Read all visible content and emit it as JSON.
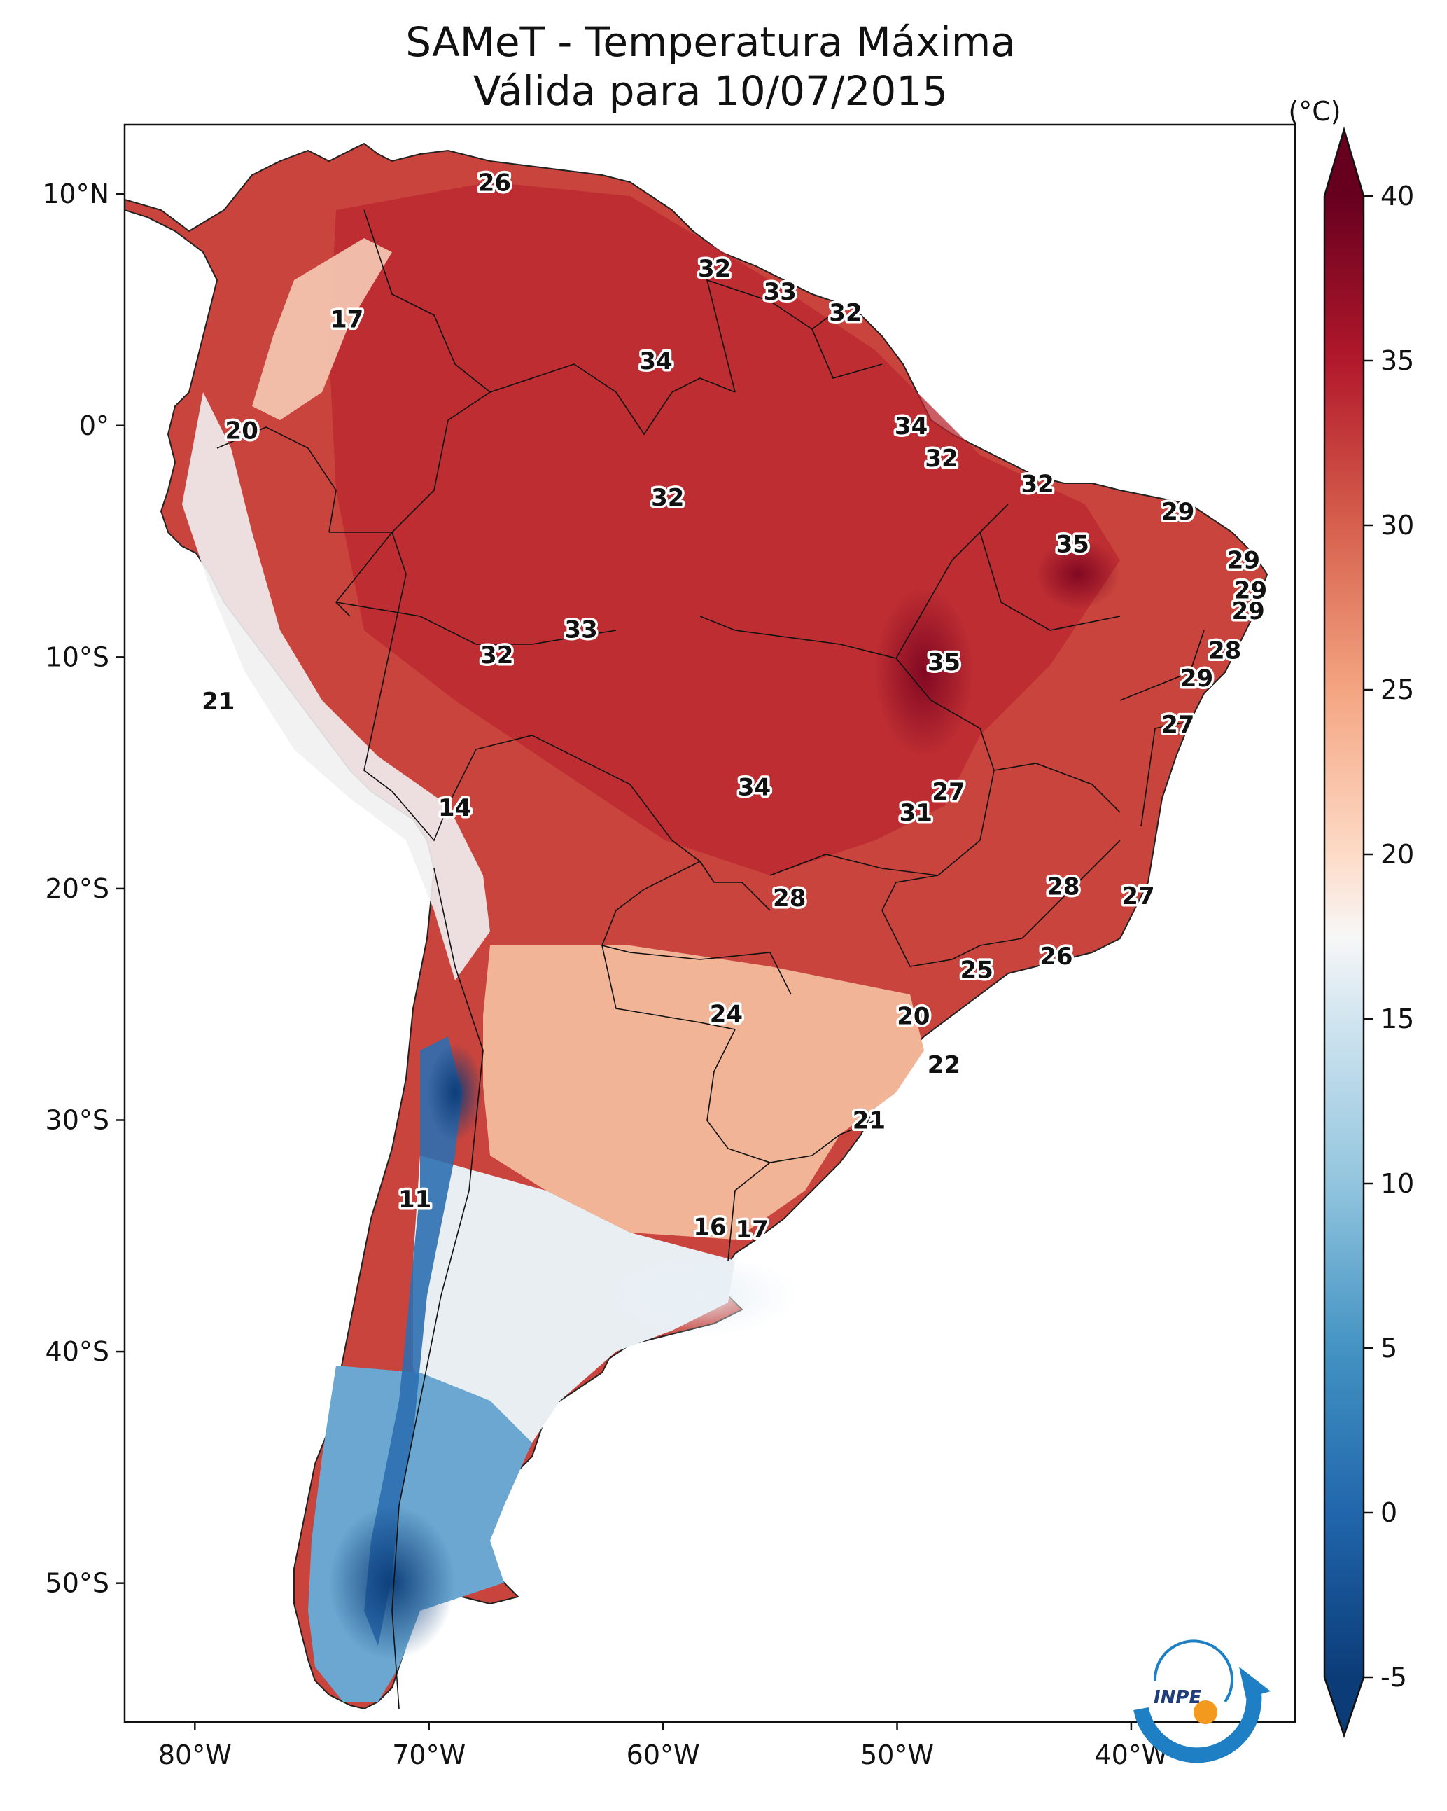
{
  "title": {
    "line1": "SAMeT - Temperatura Máxima",
    "line2": "Válida para 10/07/2015"
  },
  "map": {
    "lon_range": [
      -83,
      -33
    ],
    "lat_range": [
      -56,
      13
    ],
    "lon_ticks": [
      {
        "value": -80,
        "label": "80°W"
      },
      {
        "value": -70,
        "label": "70°W"
      },
      {
        "value": -60,
        "label": "60°W"
      },
      {
        "value": -50,
        "label": "50°W"
      },
      {
        "value": -40,
        "label": "40°W"
      }
    ],
    "lat_ticks": [
      {
        "value": 10,
        "label": "10°N"
      },
      {
        "value": 0,
        "label": "0°"
      },
      {
        "value": -10,
        "label": "10°S"
      },
      {
        "value": -20,
        "label": "20°S"
      },
      {
        "value": -30,
        "label": "30°S"
      },
      {
        "value": -40,
        "label": "40°S"
      },
      {
        "value": -50,
        "label": "50°S"
      }
    ],
    "labels": [
      {
        "lon": -67.2,
        "lat": 10.5,
        "text": "26"
      },
      {
        "lon": -73.5,
        "lat": 4.6,
        "text": "17"
      },
      {
        "lon": -78.0,
        "lat": -0.2,
        "text": "20"
      },
      {
        "lon": -57.8,
        "lat": 6.8,
        "text": "32"
      },
      {
        "lon": -55.0,
        "lat": 5.8,
        "text": "33"
      },
      {
        "lon": -52.2,
        "lat": 4.9,
        "text": "32"
      },
      {
        "lon": -60.3,
        "lat": 2.8,
        "text": "34"
      },
      {
        "lon": -49.4,
        "lat": 0.0,
        "text": "34"
      },
      {
        "lon": -48.1,
        "lat": -1.4,
        "text": "32"
      },
      {
        "lon": -59.8,
        "lat": -3.1,
        "text": "32"
      },
      {
        "lon": -44.0,
        "lat": -2.5,
        "text": "32"
      },
      {
        "lon": -42.5,
        "lat": -5.1,
        "text": "35"
      },
      {
        "lon": -38.0,
        "lat": -3.7,
        "text": "29"
      },
      {
        "lon": -35.2,
        "lat": -5.8,
        "text": "29"
      },
      {
        "lon": -34.9,
        "lat": -7.1,
        "text": "29"
      },
      {
        "lon": -35.0,
        "lat": -8.0,
        "text": "29"
      },
      {
        "lon": -36.0,
        "lat": -9.7,
        "text": "28"
      },
      {
        "lon": -37.2,
        "lat": -10.9,
        "text": "29"
      },
      {
        "lon": -38.0,
        "lat": -12.9,
        "text": "27"
      },
      {
        "lon": -48.0,
        "lat": -10.2,
        "text": "35"
      },
      {
        "lon": -63.5,
        "lat": -8.8,
        "text": "33"
      },
      {
        "lon": -67.1,
        "lat": -9.9,
        "text": "32"
      },
      {
        "lon": -79.0,
        "lat": -11.9,
        "text": "21"
      },
      {
        "lon": -68.9,
        "lat": -16.5,
        "text": "14"
      },
      {
        "lon": -56.1,
        "lat": -15.6,
        "text": "34"
      },
      {
        "lon": -47.8,
        "lat": -15.8,
        "text": "27"
      },
      {
        "lon": -49.2,
        "lat": -16.7,
        "text": "31"
      },
      {
        "lon": -54.6,
        "lat": -20.4,
        "text": "28"
      },
      {
        "lon": -42.9,
        "lat": -19.9,
        "text": "28"
      },
      {
        "lon": -39.7,
        "lat": -20.3,
        "text": "27"
      },
      {
        "lon": -43.2,
        "lat": -22.9,
        "text": "26"
      },
      {
        "lon": -46.6,
        "lat": -23.5,
        "text": "25"
      },
      {
        "lon": -57.3,
        "lat": -25.4,
        "text": "24"
      },
      {
        "lon": -49.3,
        "lat": -25.5,
        "text": "20"
      },
      {
        "lon": -48.0,
        "lat": -27.6,
        "text": "22"
      },
      {
        "lon": -51.2,
        "lat": -30.0,
        "text": "21"
      },
      {
        "lon": -70.6,
        "lat": -33.4,
        "text": "11"
      },
      {
        "lon": -58.0,
        "lat": -34.6,
        "text": "16"
      },
      {
        "lon": -56.2,
        "lat": -34.7,
        "text": "17"
      }
    ],
    "logo_text": "INPE",
    "colors": {
      "ocean": "#ffffff",
      "border": "#000000",
      "logo_blue": "#1f7fc4",
      "logo_orange": "#f39a1e"
    }
  },
  "colorbar": {
    "unit": "(°C)",
    "ticks": [
      {
        "value": 40,
        "label": "40"
      },
      {
        "value": 35,
        "label": "35"
      },
      {
        "value": 30,
        "label": "30"
      },
      {
        "value": 25,
        "label": "25"
      },
      {
        "value": 20,
        "label": "20"
      },
      {
        "value": 15,
        "label": "15"
      },
      {
        "value": 10,
        "label": "10"
      },
      {
        "value": 5,
        "label": "5"
      },
      {
        "value": 0,
        "label": "0"
      },
      {
        "value": -5,
        "label": "-5"
      }
    ],
    "range": [
      -5,
      40
    ],
    "stops": [
      {
        "value": -5,
        "color": "#0b3c78"
      },
      {
        "value": 0,
        "color": "#2166ac"
      },
      {
        "value": 5,
        "color": "#4393c3"
      },
      {
        "value": 10,
        "color": "#92c5de"
      },
      {
        "value": 15,
        "color": "#d1e5f0"
      },
      {
        "value": 17.5,
        "color": "#f7f7f7"
      },
      {
        "value": 20,
        "color": "#fddbc7"
      },
      {
        "value": 25,
        "color": "#f4a582"
      },
      {
        "value": 30,
        "color": "#d6604d"
      },
      {
        "value": 35,
        "color": "#b2182b"
      },
      {
        "value": 40,
        "color": "#67001f"
      }
    ]
  }
}
